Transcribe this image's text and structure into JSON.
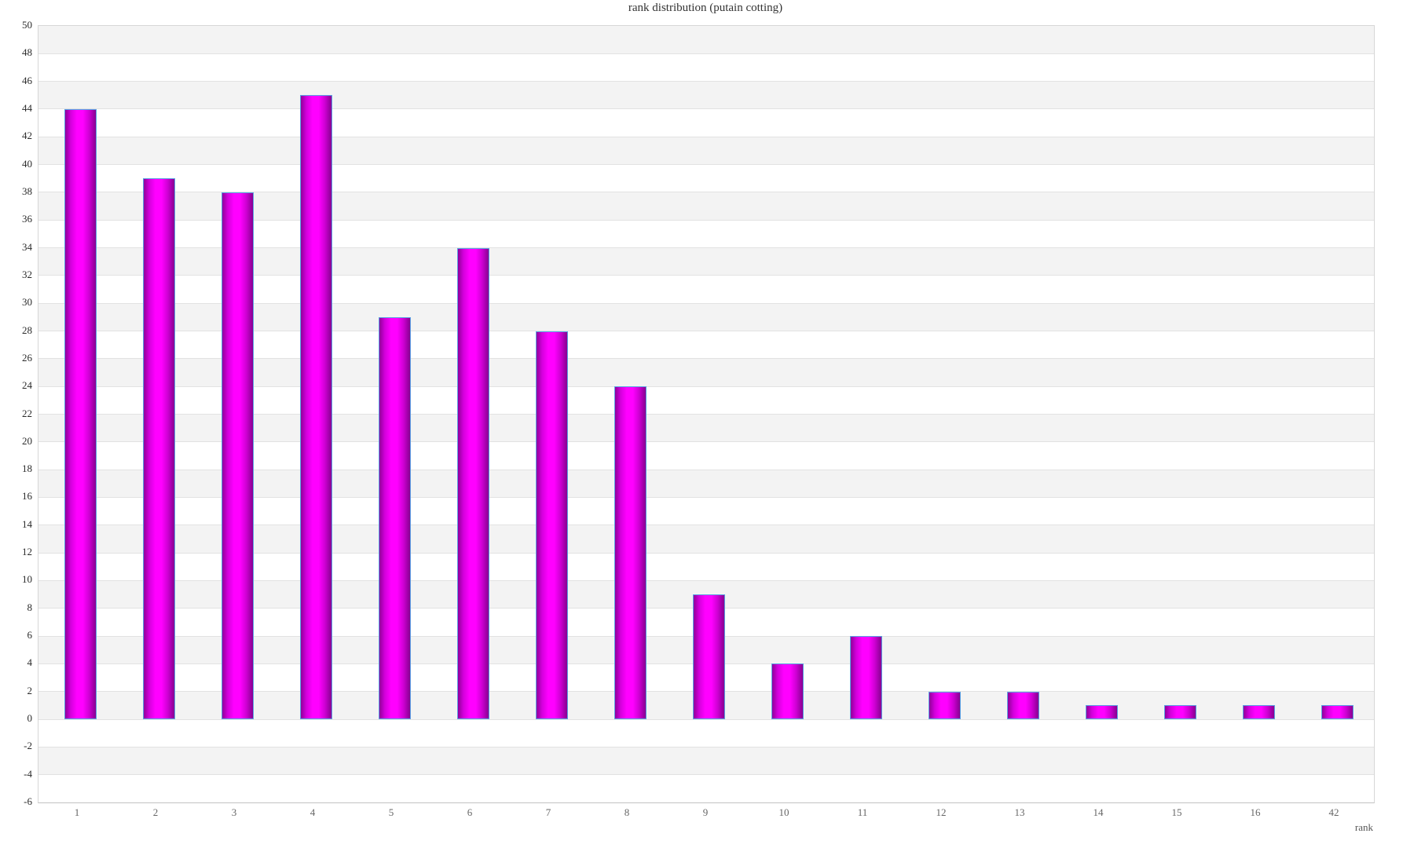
{
  "chart_data": {
    "type": "bar",
    "title": "rank distribution (putain cotting)",
    "xlabel": "rank",
    "ylabel": "",
    "categories": [
      "1",
      "2",
      "3",
      "4",
      "5",
      "6",
      "7",
      "8",
      "9",
      "10",
      "11",
      "12",
      "13",
      "14",
      "15",
      "16",
      "42"
    ],
    "values": [
      44,
      39,
      38,
      45,
      29,
      34,
      28,
      24,
      9,
      4,
      6,
      2,
      2,
      1,
      1,
      1,
      1
    ],
    "ylim": [
      -6,
      50
    ],
    "ytick_step": 2,
    "grid": true,
    "legend": false,
    "band_pattern": "gray stripes on intervals [4k, 4k+2]",
    "colors": {
      "bar_center": "#ff00ff",
      "bar_edge": "#8f0099",
      "bar_border": "#5ba2e4",
      "band_alt": "#f3f3f3",
      "band_base": "#ffffff",
      "gridline": "#e2e2e2",
      "axis_line": "#c2c2c2",
      "title_text": "#333333",
      "ytick_text": "#2b2b2b",
      "xtick_text": "#666666"
    }
  }
}
